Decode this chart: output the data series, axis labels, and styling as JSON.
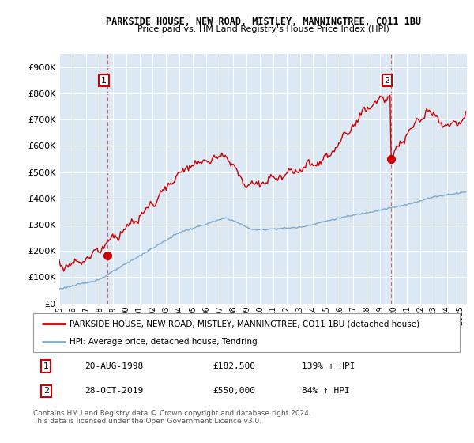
{
  "title": "PARKSIDE HOUSE, NEW ROAD, MISTLEY, MANNINGTREE, CO11 1BU",
  "subtitle": "Price paid vs. HM Land Registry's House Price Index (HPI)",
  "background_color": "#ffffff",
  "plot_bg_color": "#dce9f5",
  "grid_color": "#ffffff",
  "transaction1_date": "20-AUG-1998",
  "transaction1_price": 182500,
  "transaction1_label": "1",
  "transaction1_hpi": "139% ↑ HPI",
  "transaction2_date": "28-OCT-2019",
  "transaction2_price": 550000,
  "transaction2_label": "2",
  "transaction2_hpi": "84% ↑ HPI",
  "legend_property": "PARKSIDE HOUSE, NEW ROAD, MISTLEY, MANNINGTREE, CO11 1BU (detached house)",
  "legend_hpi": "HPI: Average price, detached house, Tendring",
  "footer": "Contains HM Land Registry data © Crown copyright and database right 2024.\nThis data is licensed under the Open Government Licence v3.0.",
  "property_color": "#cc0000",
  "hpi_color": "#7faacc",
  "dashed_color": "#cc0000",
  "ylim": [
    0,
    950000
  ],
  "yticks": [
    0,
    100000,
    200000,
    300000,
    400000,
    500000,
    600000,
    700000,
    800000,
    900000
  ],
  "ytick_labels": [
    "£0",
    "£100K",
    "£200K",
    "£300K",
    "£400K",
    "£500K",
    "£600K",
    "£700K",
    "£800K",
    "£900K"
  ],
  "xlim_start": 1995.0,
  "xlim_end": 2025.5,
  "t1_year": 1998.625,
  "t2_year": 2019.83
}
